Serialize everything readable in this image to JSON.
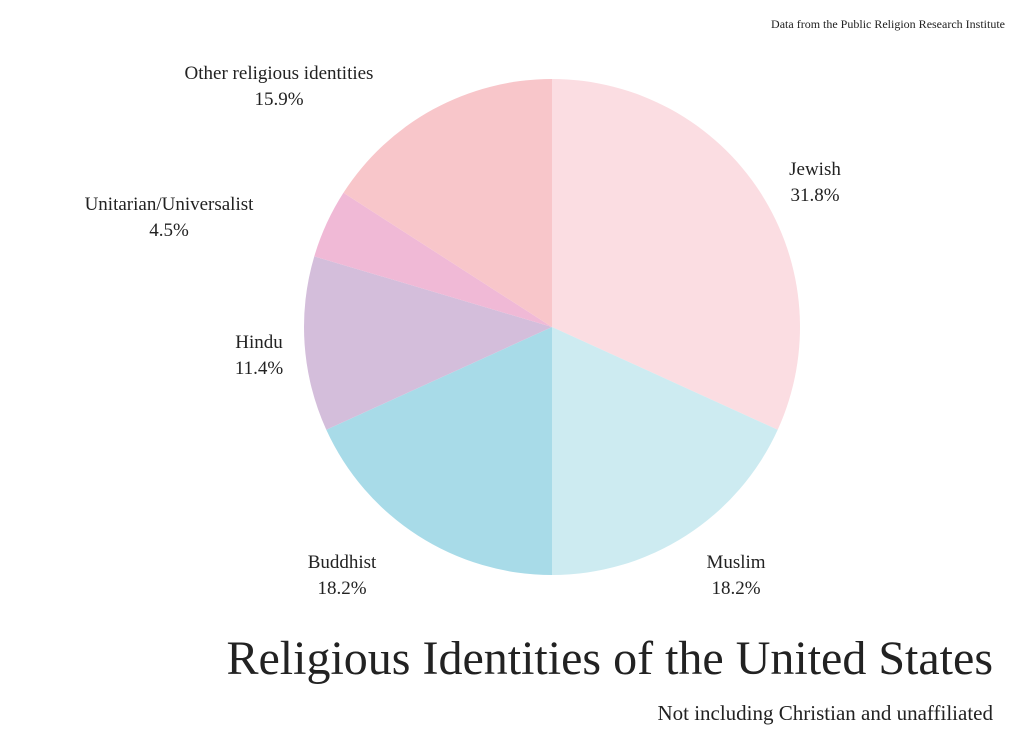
{
  "chart_data": {
    "type": "pie",
    "title": "Religious Identities of the United States",
    "subtitle": "Not including Christian and unaffiliated",
    "source": "Data from the Public Religion Research Institute",
    "categories": [
      "Jewish",
      "Muslim",
      "Buddhist",
      "Hindu",
      "Unitarian/Universalist",
      "Other religious identities"
    ],
    "values": [
      31.8,
      18.2,
      18.2,
      11.4,
      4.5,
      15.9
    ],
    "value_labels": [
      "31.8%",
      "18.2%",
      "18.2%",
      "11.4%",
      "4.5%",
      "15.9%"
    ],
    "colors": [
      "#fbdde2",
      "#cdebf1",
      "#a8dbe8",
      "#d4bedb",
      "#f0b9d6",
      "#f8c6ca"
    ]
  }
}
